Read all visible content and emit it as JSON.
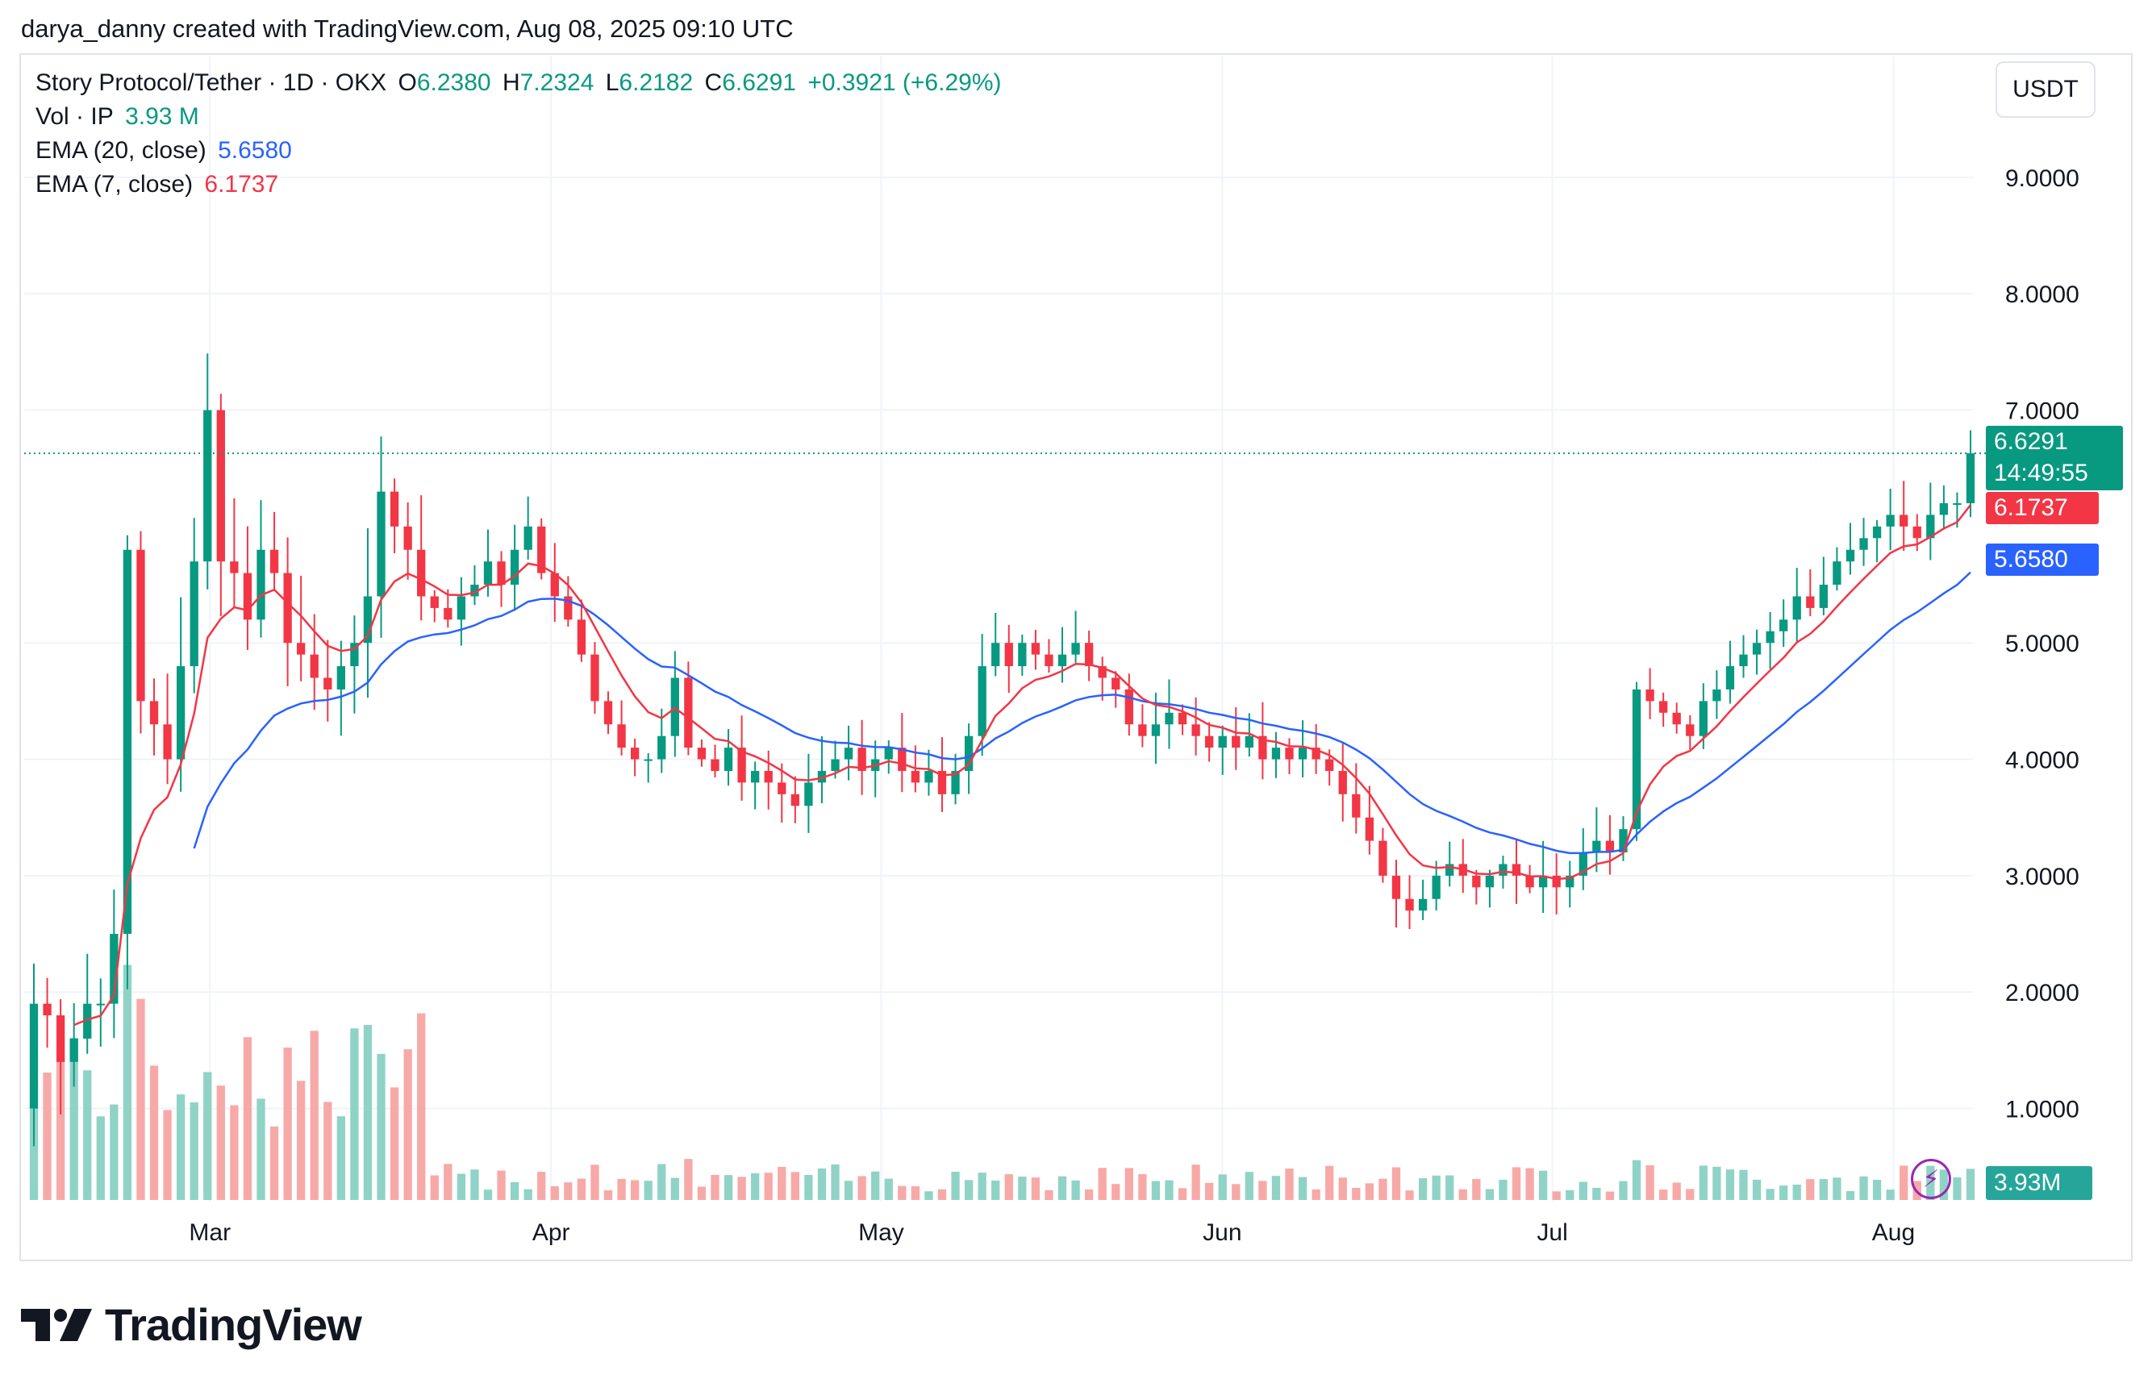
{
  "credit": "darya_danny created with TradingView.com, Aug 08, 2025 09:10 UTC",
  "legend": {
    "symbol": "Story Protocol/Tether · 1D · OKX",
    "o_label": "O",
    "o_value": "6.2380",
    "h_label": "H",
    "h_value": "7.2324",
    "l_label": "L",
    "l_value": "6.2182",
    "c_label": "C",
    "c_value": "6.6291",
    "change": "+0.3921 (+6.29%)",
    "vol_label": "Vol · IP",
    "vol_value": "3.93 M",
    "ema20_label": "EMA (20, close)",
    "ema20_value": "5.6580",
    "ema7_label": "EMA (7, close)",
    "ema7_value": "6.1737"
  },
  "currency": "USDT",
  "tags": {
    "price": "6.6291",
    "countdown": "14:49:55",
    "ema7": "6.1737",
    "ema20": "5.6580",
    "volume": "3.93M"
  },
  "logo_text": "TradingView",
  "colors": {
    "up": "#089981",
    "down": "#f23645",
    "ema20": "#2962ff",
    "ema7": "#f23645",
    "vol_up": "#8fd3c6",
    "vol_down": "#f7a9a7"
  },
  "chart_data": {
    "type": "candlestick",
    "title": "Story Protocol/Tether · 1D · OKX",
    "y_ticks": [
      "9.0000",
      "8.0000",
      "7.0000",
      "5.0000",
      "4.0000",
      "3.0000",
      "2.0000",
      "1.0000"
    ],
    "ylim": [
      0.2,
      9.9
    ],
    "x_ticks": [
      {
        "label": "Mar",
        "date": "2025-03-01"
      },
      {
        "label": "Apr",
        "date": "2025-04-01"
      },
      {
        "label": "May",
        "date": "2025-05-01"
      },
      {
        "label": "Jun",
        "date": "2025-06-01"
      },
      {
        "label": "Jul",
        "date": "2025-07-01"
      },
      {
        "label": "Aug",
        "date": "2025-08-01"
      }
    ],
    "first_date": "2025-02-13",
    "last_date": "2025-08-08",
    "last_close": 6.6291,
    "close": [
      1.9,
      1.8,
      1.4,
      1.6,
      1.9,
      1.9,
      2.5,
      5.8,
      4.5,
      4.3,
      4.0,
      4.8,
      5.7,
      7.0,
      5.7,
      5.6,
      5.2,
      5.8,
      5.6,
      5.0,
      4.9,
      4.7,
      4.6,
      4.8,
      5.0,
      5.4,
      6.3,
      6.0,
      5.8,
      5.4,
      5.3,
      5.2,
      5.4,
      5.5,
      5.7,
      5.5,
      5.8,
      6.0,
      5.6,
      5.4,
      5.2,
      4.9,
      4.5,
      4.3,
      4.1,
      4.0,
      4.0,
      4.2,
      4.7,
      4.1,
      4.0,
      3.9,
      4.1,
      3.8,
      3.9,
      3.8,
      3.7,
      3.6,
      3.8,
      3.9,
      4.0,
      4.1,
      3.9,
      4.0,
      4.1,
      3.9,
      3.8,
      3.9,
      3.7,
      3.9,
      4.2,
      4.8,
      5.0,
      4.8,
      5.0,
      4.9,
      4.8,
      4.9,
      5.0,
      4.8,
      4.7,
      4.6,
      4.3,
      4.2,
      4.3,
      4.4,
      4.3,
      4.2,
      4.1,
      4.2,
      4.1,
      4.2,
      4.0,
      4.1,
      4.0,
      4.1,
      4.0,
      3.9,
      3.7,
      3.5,
      3.3,
      3.0,
      2.8,
      2.7,
      2.8,
      3.0,
      3.1,
      3.0,
      2.9,
      3.0,
      3.1,
      3.0,
      2.9,
      3.0,
      2.9,
      3.0,
      3.2,
      3.3,
      3.2,
      3.4,
      4.6,
      4.5,
      4.4,
      4.3,
      4.2,
      4.5,
      4.6,
      4.8,
      4.9,
      5.0,
      5.1,
      5.2,
      5.4,
      5.3,
      5.5,
      5.7,
      5.8,
      5.9,
      6.0,
      6.1,
      6.0,
      5.9,
      6.1,
      6.2,
      6.2,
      6.6291
    ],
    "ema20_end": 5.658,
    "ema7_end": 6.1737,
    "volume_last": "3.93M"
  }
}
